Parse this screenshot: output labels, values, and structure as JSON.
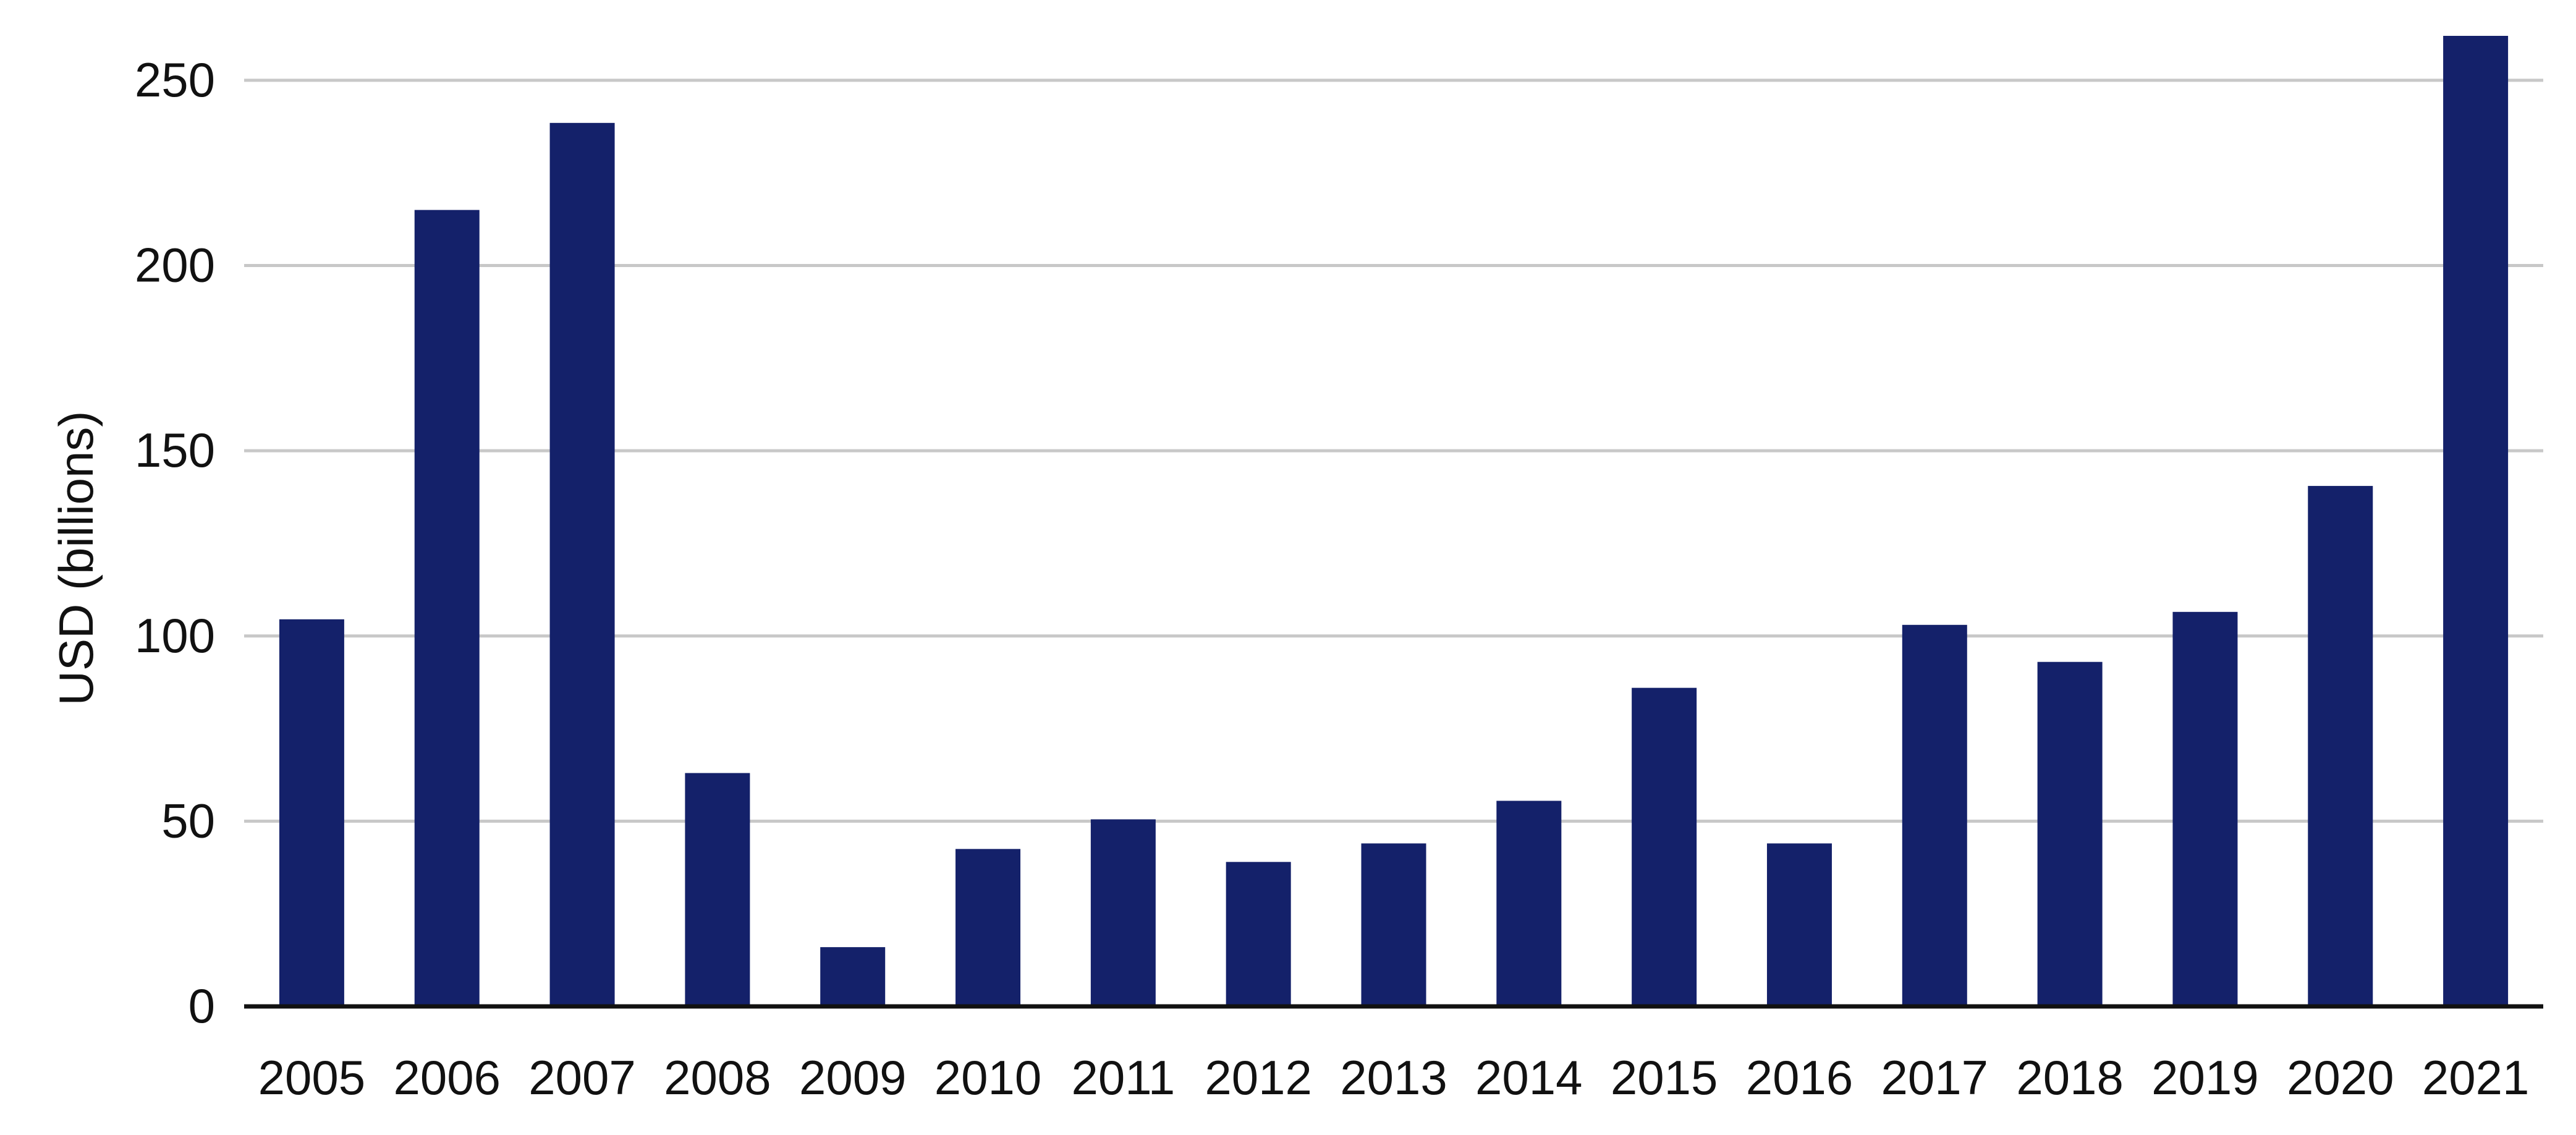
{
  "chart_data": {
    "type": "bar",
    "categories": [
      "2005",
      "2006",
      "2007",
      "2008",
      "2009",
      "2010",
      "2011",
      "2012",
      "2013",
      "2014",
      "2015",
      "2016",
      "2017",
      "2018",
      "2019",
      "2020",
      "2021"
    ],
    "values": [
      104.5,
      215,
      238.5,
      63,
      16,
      42.5,
      50.5,
      39,
      44,
      55.5,
      86,
      44,
      103,
      93,
      106.5,
      140.5,
      262
    ],
    "ylabel": "USD (billions)",
    "xlabel": "",
    "ylim": [
      0,
      262
    ],
    "yticks": [
      0,
      50,
      100,
      150,
      200,
      250
    ],
    "grid": true,
    "colors": {
      "bar": "#14216a",
      "grid": "#c8c8c8",
      "axis": "#111111"
    }
  }
}
